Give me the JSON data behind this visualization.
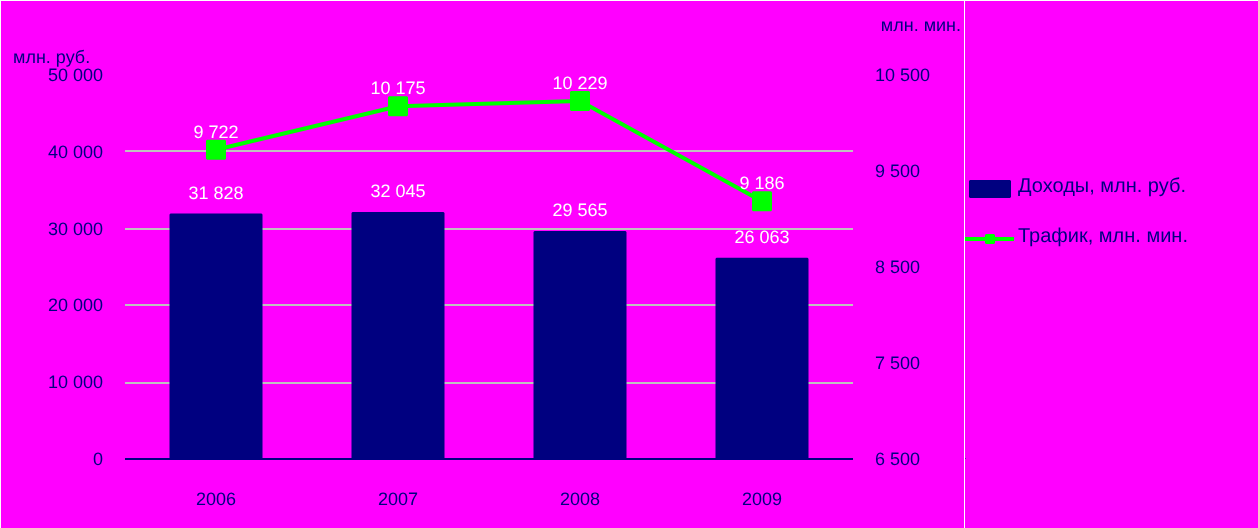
{
  "chart_data": {
    "type": "bar",
    "categories": [
      "2006",
      "2007",
      "2008",
      "2009"
    ],
    "series": [
      {
        "name": "Доходы, млн. руб.",
        "color": "#000080",
        "values": [
          31828,
          32045,
          29565,
          26063
        ]
      },
      {
        "name": "Трафик, млн. мин.",
        "type": "line",
        "axis": "y2",
        "color": "#00ff00",
        "values": [
          9722,
          10175,
          10229,
          9186
        ],
        "marker": "square"
      }
    ],
    "ylabel": "млн. руб.",
    "y2label": "млн. мин.",
    "ylim": [
      0,
      50000
    ],
    "yticks": [
      {
        "value": 0,
        "label": "0"
      },
      {
        "value": 10000,
        "label": "10 000"
      },
      {
        "value": 20000,
        "label": "20 000"
      },
      {
        "value": 30000,
        "label": "30 000"
      },
      {
        "value": 40000,
        "label": "40 000"
      },
      {
        "value": 50000,
        "label": "50 000"
      }
    ],
    "y2lim": [
      6500,
      10500
    ],
    "y2ticks": [
      {
        "value": 6500,
        "label": "6 500"
      },
      {
        "value": 7500,
        "label": "7 500"
      },
      {
        "value": 8500,
        "label": "8 500"
      },
      {
        "value": 9500,
        "label": "9 500"
      },
      {
        "value": 10500,
        "label": "10 500"
      }
    ],
    "data_labels": true,
    "grid": "y",
    "legend": "right"
  }
}
